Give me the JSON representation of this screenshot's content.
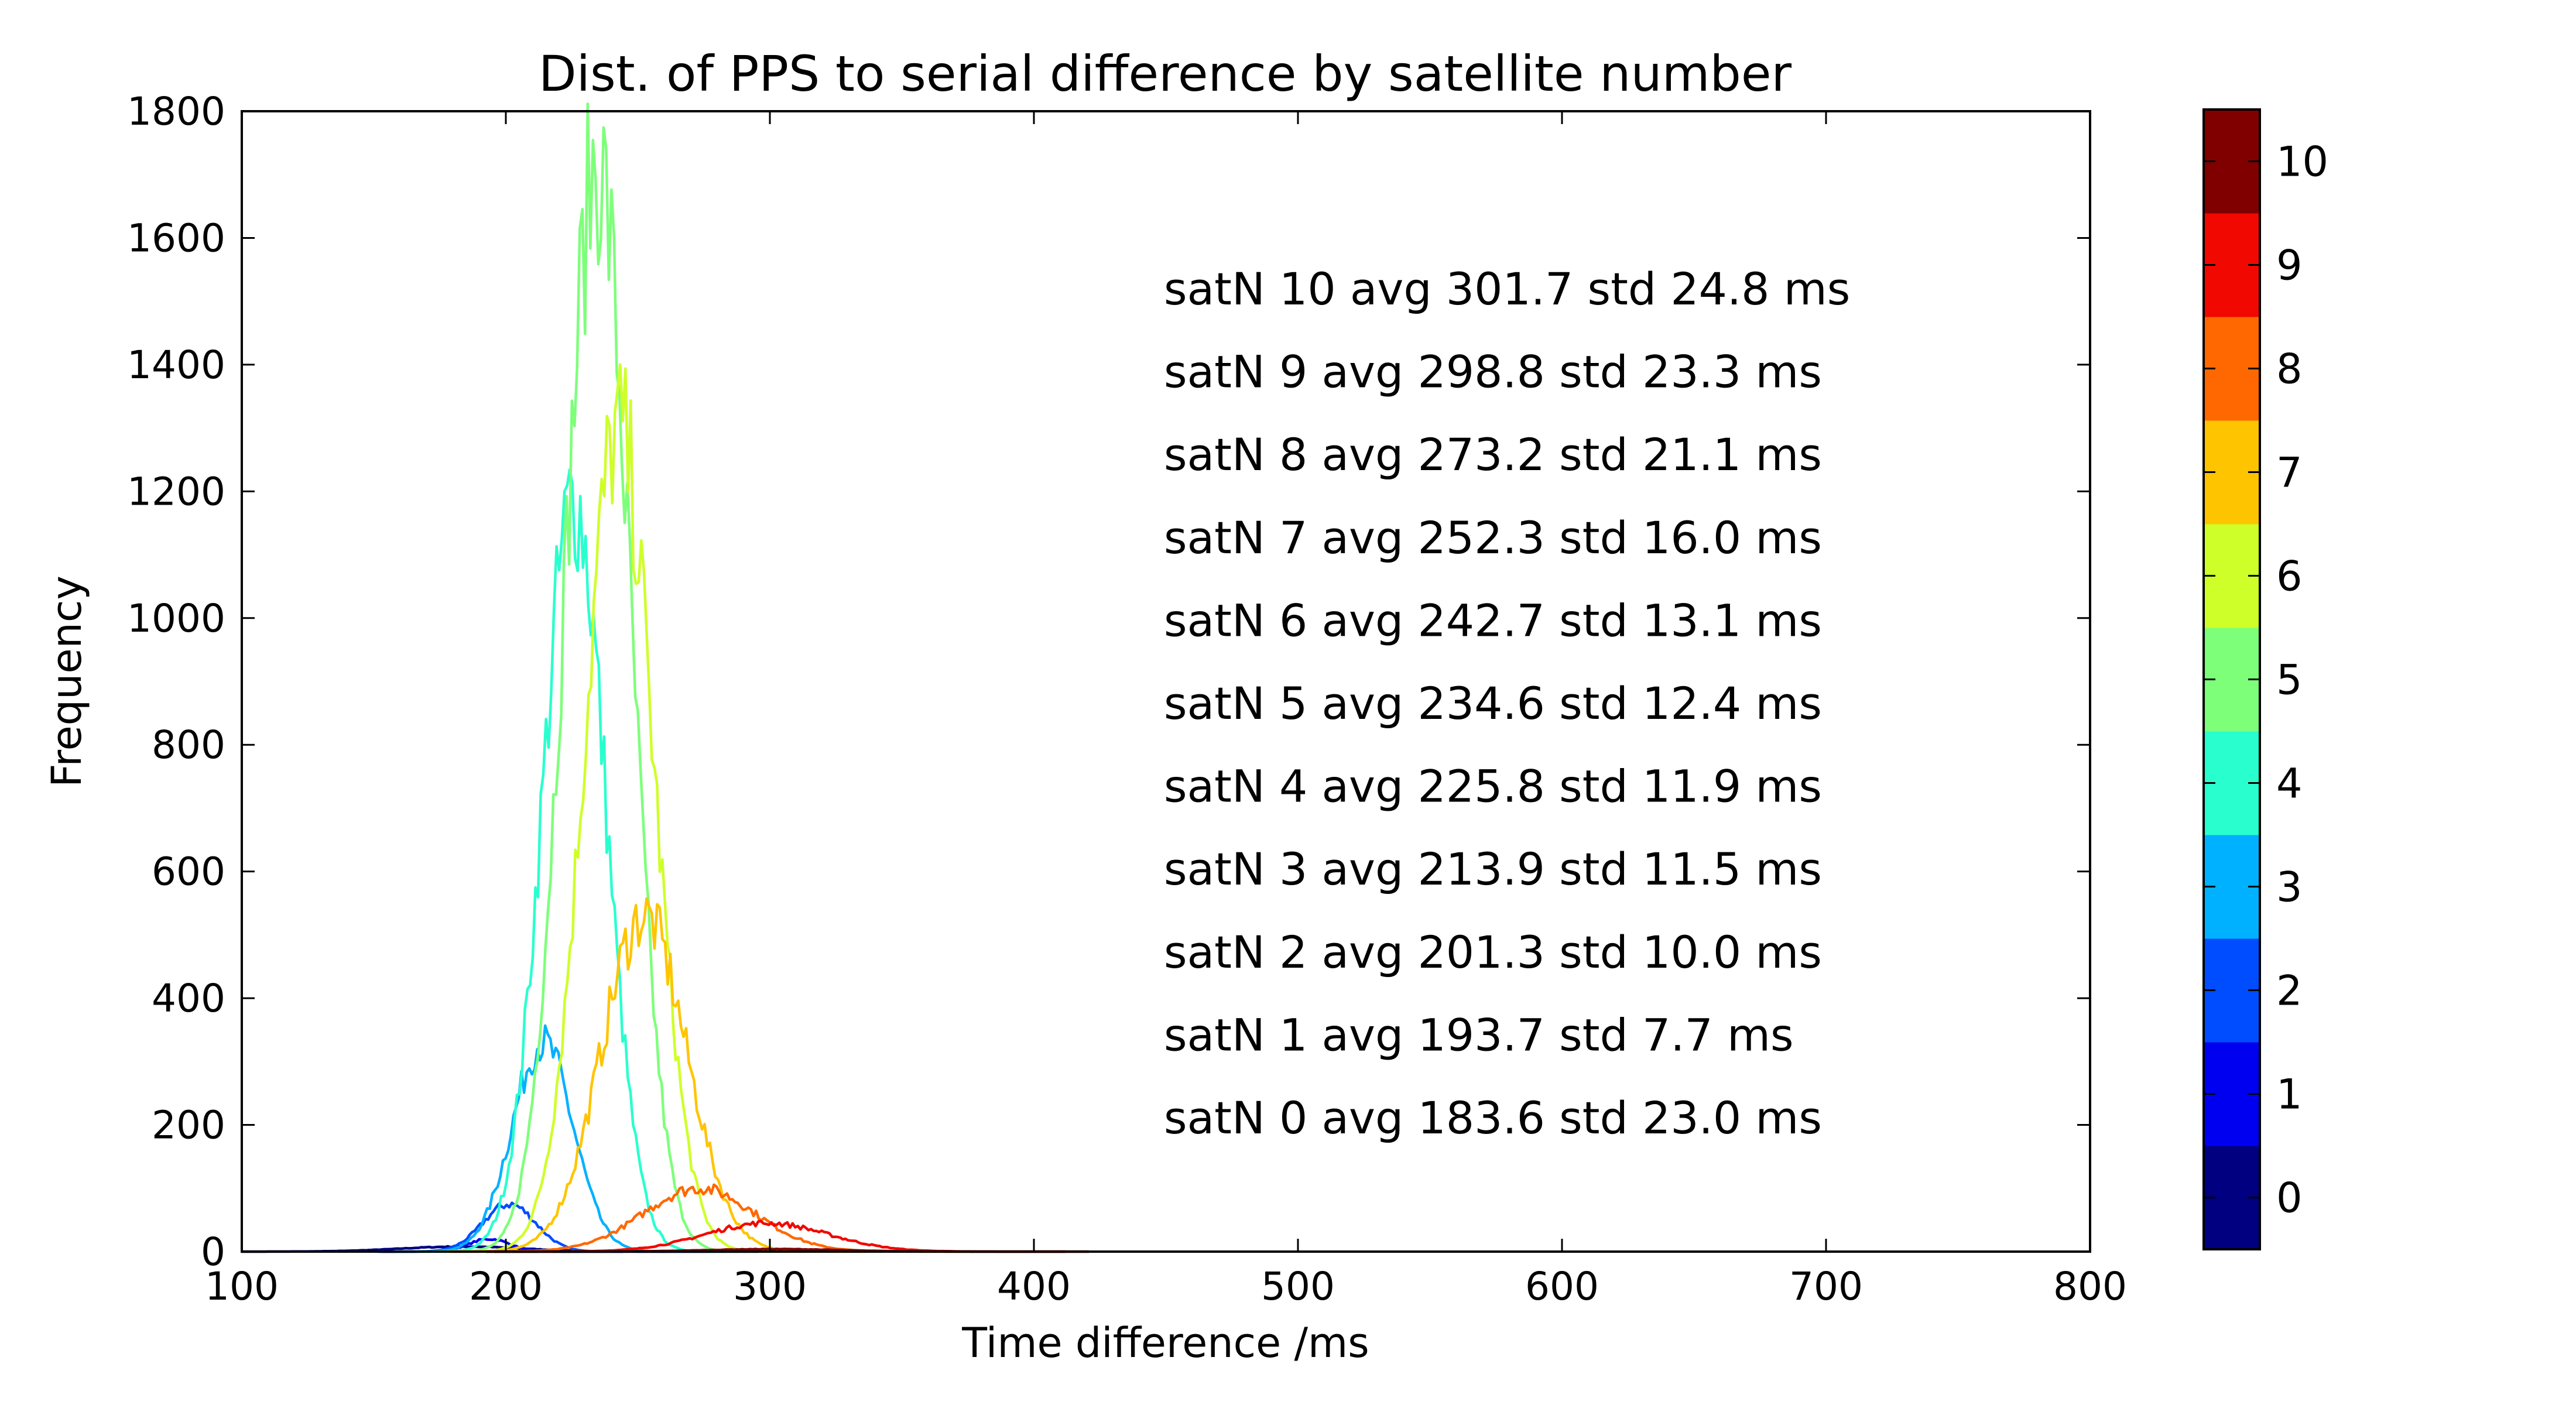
{
  "chart_data": {
    "type": "line",
    "title": "Dist. of PPS to serial difference by satellite number",
    "xlabel": "Time difference /ms",
    "ylabel": "Frequency",
    "xlim": [
      100,
      800
    ],
    "ylim": [
      0,
      1800
    ],
    "xticks": [
      "100",
      "200",
      "300",
      "400",
      "500",
      "600",
      "700",
      "800"
    ],
    "yticks": [
      "0",
      "200",
      "400",
      "600",
      "800",
      "1000",
      "1200",
      "1400",
      "1600",
      "1800"
    ],
    "grid": false,
    "colorbar": {
      "labels": [
        "0",
        "1",
        "2",
        "3",
        "4",
        "5",
        "6",
        "7",
        "8",
        "9",
        "10"
      ],
      "colors": [
        "#000080",
        "#0000f1",
        "#004dff",
        "#00b1ff",
        "#29ffce",
        "#7dff7a",
        "#ceff29",
        "#ffc400",
        "#ff6800",
        "#f10800",
        "#800000"
      ]
    },
    "series": [
      {
        "satN": 0,
        "color": "#000080",
        "avg": 183.6,
        "std": 23.0,
        "peak": 8,
        "label": "satN 0 avg 183.6 std 23.0 ms"
      },
      {
        "satN": 1,
        "color": "#0000f1",
        "avg": 193.7,
        "std": 7.7,
        "peak": 20,
        "label": "satN 1 avg 193.7 std 7.7 ms"
      },
      {
        "satN": 2,
        "color": "#004dff",
        "avg": 201.3,
        "std": 10.0,
        "peak": 75,
        "label": "satN 2 avg 201.3 std 10.0 ms"
      },
      {
        "satN": 3,
        "color": "#00b1ff",
        "avg": 213.9,
        "std": 11.5,
        "peak": 330,
        "label": "satN 3 avg 213.9 std 11.5 ms"
      },
      {
        "satN": 4,
        "color": "#29ffce",
        "avg": 225.8,
        "std": 11.9,
        "peak": 1190,
        "label": "satN 4 avg 225.8 std 11.9 ms"
      },
      {
        "satN": 5,
        "color": "#7dff7a",
        "avg": 234.6,
        "std": 12.4,
        "peak": 1720,
        "label": "satN 5 avg 234.6 std 12.4 ms"
      },
      {
        "satN": 6,
        "color": "#ceff29",
        "avg": 242.7,
        "std": 13.1,
        "peak": 1300,
        "label": "satN 6 avg 242.7 std 13.1 ms"
      },
      {
        "satN": 7,
        "color": "#ffc400",
        "avg": 252.3,
        "std": 16.0,
        "peak": 530,
        "label": "satN 7 avg 252.3 std 16.0 ms"
      },
      {
        "satN": 8,
        "color": "#ff6800",
        "avg": 273.2,
        "std": 21.1,
        "peak": 100,
        "label": "satN 8 avg 273.2 std 21.1 ms"
      },
      {
        "satN": 9,
        "color": "#f10800",
        "avg": 298.8,
        "std": 23.3,
        "peak": 45,
        "label": "satN 9 avg 298.8 std 23.3 ms"
      },
      {
        "satN": 10,
        "color": "#800000",
        "avg": 301.7,
        "std": 24.8,
        "peak": 4,
        "label": "satN 10 avg 301.7 std 24.8 ms"
      }
    ]
  }
}
